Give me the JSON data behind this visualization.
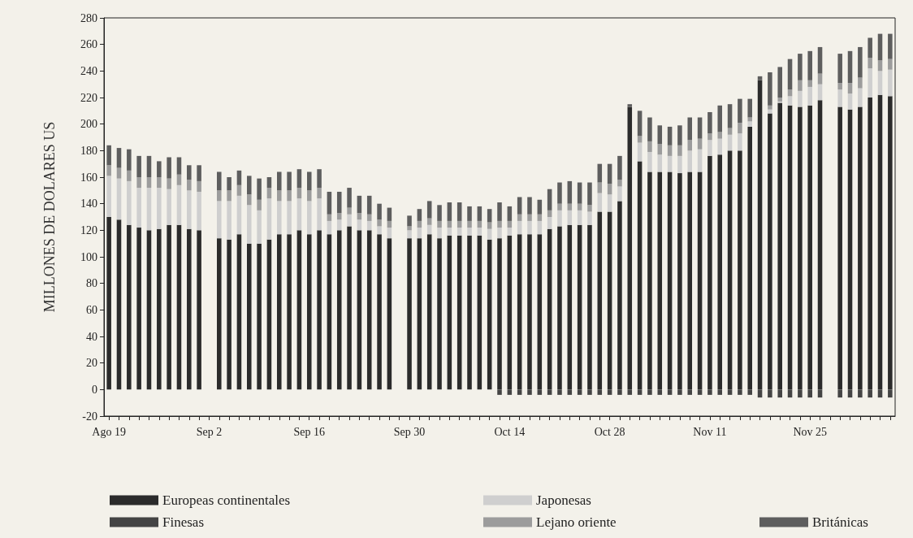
{
  "chart_data": {
    "type": "bar",
    "stacked": true,
    "ylabel": "MILLONES DE DOLARES US",
    "ylim": [
      -20,
      280
    ],
    "yticks": [
      -20,
      0,
      20,
      40,
      60,
      80,
      100,
      120,
      140,
      160,
      180,
      200,
      220,
      240,
      260,
      280
    ],
    "legend": "bottom",
    "categories": [
      "Ago 19",
      null,
      null,
      null,
      null,
      null,
      null,
      null,
      null,
      null,
      "Sep 2",
      null,
      null,
      null,
      null,
      null,
      null,
      null,
      null,
      null,
      "Sep 16",
      null,
      null,
      null,
      null,
      null,
      null,
      null,
      null,
      null,
      "Sep 30",
      null,
      null,
      null,
      null,
      null,
      null,
      null,
      null,
      null,
      "Oct 14",
      null,
      null,
      null,
      null,
      null,
      null,
      null,
      null,
      null,
      "Oct 28",
      null,
      null,
      null,
      null,
      null,
      null,
      null,
      null,
      null,
      "Nov 11",
      null,
      null,
      null,
      null,
      null,
      null,
      null,
      null,
      null,
      "Nov 25",
      null,
      null,
      null,
      null,
      null,
      null,
      null,
      null
    ],
    "series": [
      {
        "name": "Europeas continentales",
        "color": "#2b2b2b",
        "values": [
          130,
          128,
          124,
          122,
          120,
          121,
          124,
          124,
          121,
          120,
          null,
          114,
          113,
          117,
          110,
          110,
          113,
          117,
          117,
          120,
          117,
          120,
          117,
          120,
          123,
          120,
          120,
          117,
          114,
          null,
          114,
          114,
          117,
          114,
          116,
          116,
          116,
          116,
          113,
          114,
          116,
          117,
          117,
          117,
          121,
          123,
          124,
          124,
          124,
          134,
          134,
          142,
          213,
          172,
          164,
          164,
          164,
          163,
          164,
          164,
          176,
          177,
          180,
          180,
          198,
          233,
          208,
          216,
          214,
          213,
          214,
          218,
          null,
          213,
          211,
          213,
          220,
          222,
          221
        ]
      },
      {
        "name": "Finesas",
        "color": "#444444",
        "values": [
          0,
          0,
          0,
          0,
          0,
          0,
          0,
          0,
          0,
          0,
          null,
          0,
          0,
          0,
          0,
          0,
          0,
          0,
          0,
          0,
          0,
          0,
          0,
          0,
          0,
          0,
          0,
          0,
          0,
          null,
          0,
          0,
          0,
          0,
          0,
          0,
          0,
          0,
          0,
          -4,
          -4,
          -4,
          -4,
          -4,
          -4,
          -4,
          -4,
          -4,
          -4,
          -4,
          -4,
          -4,
          -4,
          -4,
          -4,
          -4,
          -4,
          -4,
          -4,
          -4,
          -4,
          -4,
          -4,
          -4,
          -4,
          -6,
          -6,
          -6,
          -6,
          -6,
          -6,
          -6,
          null,
          -6,
          -6,
          -6,
          -6,
          -6,
          -6
        ]
      },
      {
        "name": "Japonesas",
        "color": "#cfcfcf",
        "values": [
          31,
          31,
          33,
          30,
          32,
          31,
          27,
          30,
          29,
          29,
          null,
          28,
          29,
          29,
          29,
          25,
          31,
          25,
          25,
          24,
          25,
          24,
          10,
          8,
          9,
          8,
          7,
          6,
          8,
          null,
          6,
          8,
          7,
          8,
          6,
          6,
          6,
          6,
          8,
          8,
          6,
          10,
          10,
          10,
          9,
          12,
          11,
          11,
          10,
          14,
          13,
          11,
          0,
          14,
          15,
          13,
          12,
          13,
          16,
          17,
          12,
          12,
          12,
          13,
          4,
          0,
          3,
          1,
          7,
          12,
          14,
          12,
          null,
          13,
          12,
          14,
          22,
          18,
          20
        ]
      },
      {
        "name": "Lejano oriente",
        "color": "#9c9c9c",
        "values": [
          8,
          8,
          8,
          8,
          8,
          8,
          8,
          8,
          8,
          8,
          null,
          8,
          8,
          8,
          8,
          8,
          8,
          8,
          8,
          8,
          8,
          8,
          5,
          5,
          5,
          5,
          5,
          5,
          5,
          null,
          3,
          5,
          5,
          5,
          5,
          5,
          5,
          5,
          5,
          5,
          5,
          5,
          5,
          5,
          5,
          5,
          5,
          5,
          5,
          8,
          8,
          5,
          0,
          5,
          8,
          8,
          8,
          8,
          8,
          8,
          5,
          5,
          5,
          8,
          3,
          0,
          3,
          3,
          5,
          8,
          5,
          8,
          null,
          5,
          8,
          8,
          8,
          8,
          8
        ]
      },
      {
        "name": "Británicas",
        "color": "#5e5e5e",
        "values": [
          15,
          15,
          16,
          16,
          16,
          12,
          16,
          13,
          11,
          12,
          null,
          14,
          10,
          11,
          14,
          16,
          8,
          14,
          14,
          14,
          14,
          14,
          17,
          16,
          15,
          13,
          14,
          12,
          10,
          null,
          8,
          9,
          13,
          12,
          14,
          14,
          11,
          11,
          10,
          14,
          11,
          13,
          13,
          11,
          16,
          16,
          17,
          16,
          17,
          14,
          15,
          18,
          2,
          19,
          18,
          14,
          14,
          15,
          17,
          16,
          16,
          20,
          18,
          18,
          14,
          3,
          25,
          23,
          23,
          20,
          22,
          20,
          null,
          22,
          24,
          23,
          15,
          20,
          19
        ]
      }
    ]
  }
}
